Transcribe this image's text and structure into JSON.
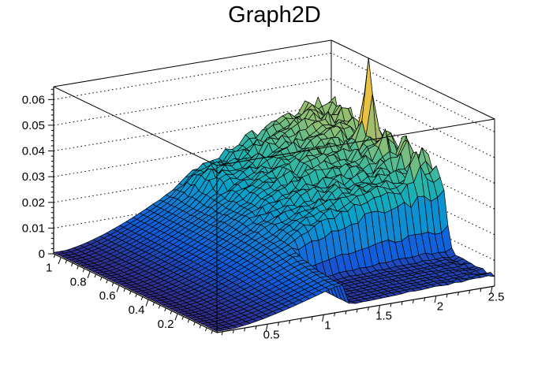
{
  "title": "Graph2D",
  "chart_data": {
    "type": "surface3d",
    "title": "Graph2D",
    "style": "root-surf1-mesh",
    "x_axis": {
      "min": 0.05,
      "max": 2.52,
      "tick_values": [
        0.5,
        1,
        1.5,
        2,
        2.5
      ],
      "tick_labels": [
        "0.5",
        "1",
        "1.5",
        "2",
        "2.5"
      ],
      "minor_step": 0.1
    },
    "y_axis": {
      "min": -0.07,
      "max": 1.05,
      "tick_values": [
        1,
        0.8,
        0.6,
        0.4,
        0.2
      ],
      "tick_labels": [
        "1",
        "0.8",
        "0.6",
        "0.4",
        "0.2"
      ],
      "minor_step": 0.04
    },
    "z_axis": {
      "min": 0,
      "max": 0.065,
      "tick_values": [
        0,
        0.01,
        0.02,
        0.03,
        0.04,
        0.05,
        0.06
      ],
      "tick_labels": [
        "0",
        "0.01",
        "0.02",
        "0.03",
        "0.04",
        "0.05",
        "0.06"
      ],
      "minor_step": 0.002,
      "wall_gridlines_dotted": true
    },
    "palette": [
      "#352A87",
      "#0F5CDD",
      "#1481D6",
      "#06A4CA",
      "#2EB7A4",
      "#87BF77",
      "#D1BB59",
      "#FEC832",
      "#F9FB0E"
    ],
    "grid": {
      "nx": 42,
      "ny": 42
    },
    "z_peak": 0.062,
    "z_floor_value": 0.004,
    "surface_model": {
      "base": {
        "amp": 0.0375,
        "xscale": 1.55,
        "power": 1.9
      },
      "ymod": {
        "a": 0.92,
        "b": 0.13
      },
      "bumps": [
        {
          "x": 2.0,
          "y": 0.85,
          "amp": 0.0045,
          "sx": 0.4,
          "sy": 0.28
        },
        {
          "x": 1.55,
          "y": 0.6,
          "amp": 0.0028,
          "sx": 0.35,
          "sy": 0.25
        },
        {
          "x": 2.35,
          "y": 0.95,
          "amp": 0.003,
          "sx": 0.25,
          "sy": 0.15
        },
        {
          "x": 1.285,
          "y": 0.945,
          "amp": 0.005,
          "sx": 0.1,
          "sy": 0.08
        }
      ],
      "spikes": [
        {
          "x": 2.402,
          "y": 0.7035,
          "amp": 0.0305,
          "sx": 0.03,
          "sy": 0.022
        },
        {
          "x": 2.344,
          "y": 0.331,
          "amp": 0.01,
          "sx": 0.035,
          "sy": 0.025
        },
        {
          "x": 2.461,
          "y": 0.384,
          "amp": 0.009,
          "sx": 0.03,
          "sy": 0.022
        },
        {
          "x": 2.402,
          "y": 0.438,
          "amp": 0.0085,
          "sx": 0.035,
          "sy": 0.025
        },
        {
          "x": 2.461,
          "y": 0.491,
          "amp": 0.008,
          "sx": 0.03,
          "sy": 0.022
        },
        {
          "x": 2.344,
          "y": 0.545,
          "amp": 0.007,
          "sx": 0.04,
          "sy": 0.03
        },
        {
          "x": 2.461,
          "y": 0.598,
          "amp": 0.0075,
          "sx": 0.03,
          "sy": 0.022
        }
      ],
      "front": {
        "level": 0.7,
        "range": 0.3,
        "y_center": 0.18,
        "y_width": 0.09
      },
      "cliff": {
        "x_edge": 1.195,
        "x_width": 0.012,
        "y_center": 0.26,
        "y_width": 0.014,
        "floor": 0.13
      },
      "noise": {
        "amp": 0.0022,
        "z_on": 0.012,
        "z_scale": 0.02,
        "edge_amp": 0.002,
        "edge_x0": 2.0,
        "edge_xw": 0.5,
        "seed": 13.345
      },
      "z_clamp_min": 0.0005,
      "palette_zmax": 0.0635
    }
  }
}
